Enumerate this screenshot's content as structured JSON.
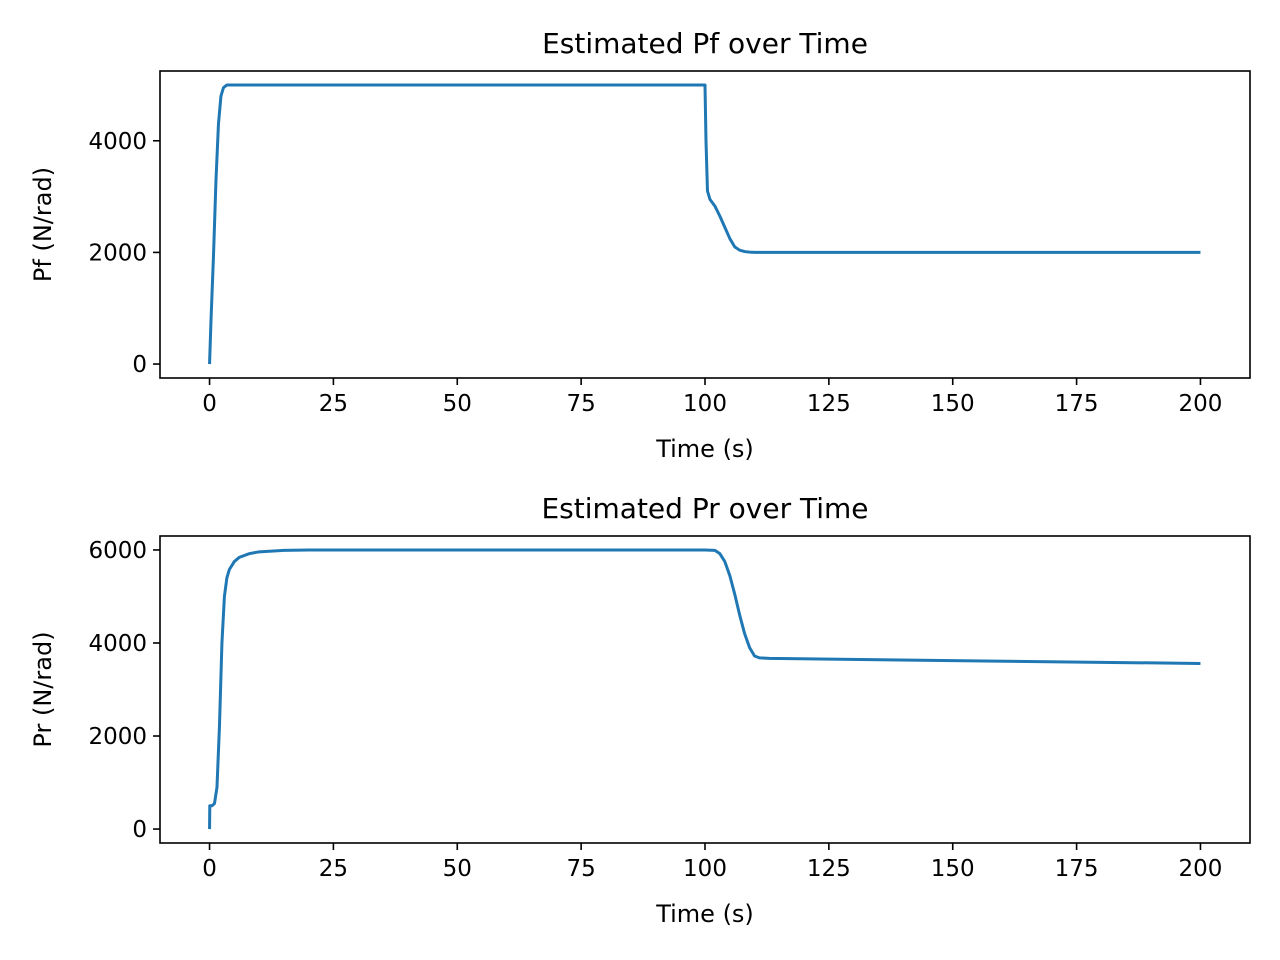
{
  "colors": {
    "series": "#1f77b4"
  },
  "chart_data": [
    {
      "type": "line",
      "title": "Estimated Pf over Time",
      "xlabel": "Time (s)",
      "ylabel": "Pf (N/rad)",
      "xlim": [
        -10,
        210
      ],
      "ylim": [
        -250,
        5250
      ],
      "xticks": [
        0,
        25,
        50,
        75,
        100,
        125,
        150,
        175,
        200
      ],
      "yticks": [
        0,
        2000,
        4000
      ],
      "grid": false,
      "series": [
        {
          "name": "",
          "x": [
            0,
            0.3,
            0.8,
            1.3,
            1.8,
            2.3,
            2.8,
            3.5,
            5,
            100,
            100.2,
            100.5,
            101,
            102,
            103,
            104,
            105,
            106,
            107,
            108,
            109,
            110,
            115,
            200
          ],
          "y": [
            0,
            800,
            1950,
            3300,
            4300,
            4800,
            4950,
            5000,
            5000,
            5000,
            4000,
            3100,
            2950,
            2830,
            2650,
            2450,
            2250,
            2100,
            2040,
            2015,
            2005,
            2000,
            2000,
            2000
          ]
        }
      ]
    },
    {
      "type": "line",
      "title": "Estimated Pr over Time",
      "xlabel": "Time (s)",
      "ylabel": "Pr (N/rad)",
      "xlim": [
        -10,
        210
      ],
      "ylim": [
        -300,
        6300
      ],
      "xticks": [
        0,
        25,
        50,
        75,
        100,
        125,
        150,
        175,
        200
      ],
      "yticks": [
        0,
        2000,
        4000,
        6000
      ],
      "grid": false,
      "series": [
        {
          "name": "",
          "x": [
            0,
            0.05,
            0.5,
            1,
            1.5,
            2,
            2.5,
            3,
            3.5,
            4,
            5,
            6,
            8,
            10,
            15,
            20,
            30,
            100,
            102,
            103,
            104,
            105,
            106,
            107,
            108,
            109,
            110,
            111,
            113,
            150,
            200
          ],
          "y": [
            0,
            500,
            500,
            550,
            900,
            2200,
            4000,
            5000,
            5400,
            5580,
            5750,
            5840,
            5920,
            5960,
            5990,
            6000,
            6000,
            6000,
            5990,
            5920,
            5750,
            5450,
            5050,
            4600,
            4200,
            3900,
            3720,
            3680,
            3670,
            3620,
            3560
          ]
        }
      ]
    }
  ]
}
